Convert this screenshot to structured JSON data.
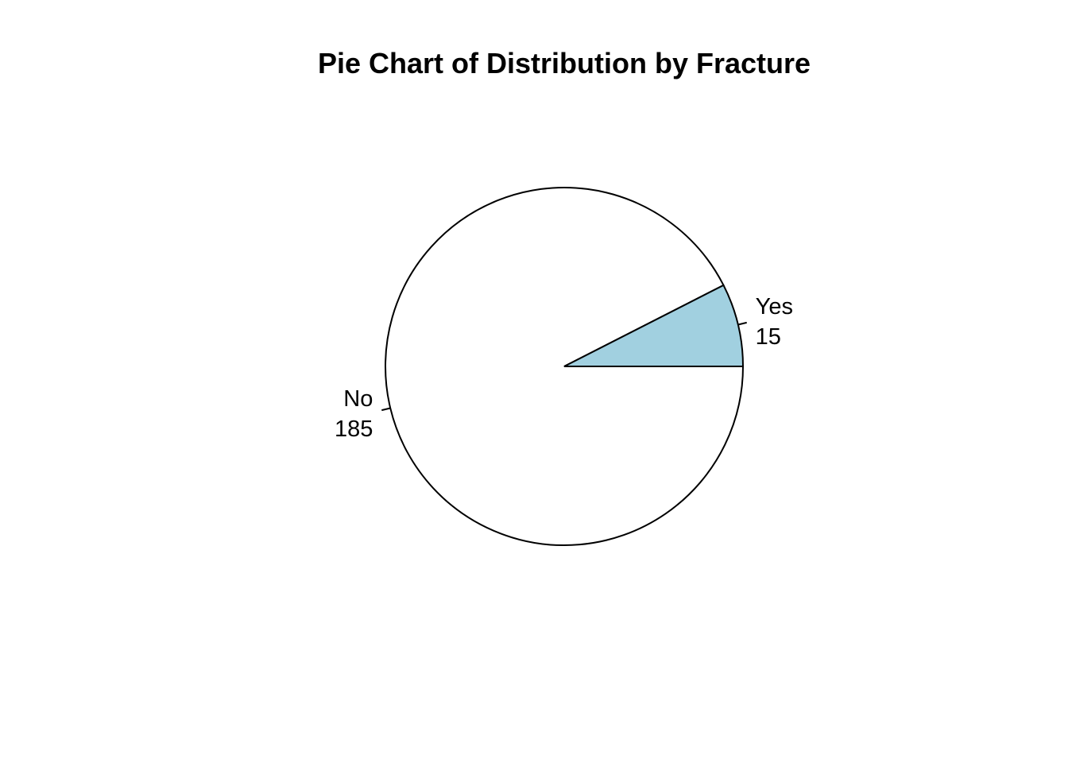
{
  "chart_data": {
    "type": "pie",
    "title": "Pie Chart of Distribution by Fracture",
    "slices": [
      {
        "label": "No",
        "value": 185,
        "value_text": "185",
        "color": "#ffffff"
      },
      {
        "label": "Yes",
        "value": 15,
        "value_text": "15",
        "color": "#a1d0e0"
      }
    ],
    "start_angle_deg": 0,
    "direction": "clockwise",
    "legend": "none",
    "border_color": "#000000"
  }
}
